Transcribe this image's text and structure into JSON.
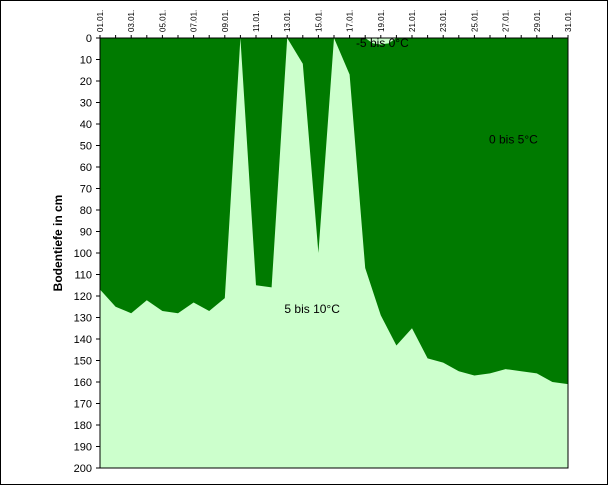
{
  "chart_data": {
    "type": "area",
    "title": "",
    "xlabel": "",
    "ylabel": "Bodentiefe in cm",
    "ylim": [
      0,
      200
    ],
    "y_inverted": true,
    "grid": false,
    "x_tick_labels": [
      "01.01.",
      "03.01.",
      "05.01.",
      "07.01.",
      "09.01.",
      "11.01.",
      "13.01.",
      "15.01.",
      "17.01.",
      "19.01.",
      "21.01.",
      "23.01.",
      "25.01.",
      "27.01.",
      "29.01.",
      "31.01."
    ],
    "y_ticks": [
      0,
      10,
      20,
      30,
      40,
      50,
      60,
      70,
      80,
      90,
      100,
      110,
      120,
      130,
      140,
      150,
      160,
      170,
      180,
      190,
      200
    ],
    "x": [
      1,
      2,
      3,
      4,
      5,
      6,
      7,
      8,
      9,
      10,
      11,
      12,
      13,
      14,
      15,
      16,
      17,
      18,
      19,
      20,
      21,
      22,
      23,
      24,
      25,
      26,
      27,
      28,
      29,
      30,
      31
    ],
    "series": [
      {
        "label": "0 bis 5°C",
        "color": "#007a00",
        "values": [
          117,
          125,
          128,
          122,
          127,
          128,
          123,
          127,
          121,
          0,
          115,
          116,
          0,
          12,
          100,
          0,
          17,
          107,
          129,
          143,
          135,
          149,
          151,
          155,
          157,
          156,
          154,
          155,
          156,
          160,
          161
        ]
      },
      {
        "label": "-5 bis 0°C",
        "color": "#ccffcc",
        "x": [
          18,
          18.5,
          19,
          19.5,
          20
        ],
        "values": [
          0,
          2.5,
          3,
          2.5,
          0
        ]
      }
    ],
    "background_region_label": "5 bis 10°C",
    "background_color": "#ccffcc"
  }
}
